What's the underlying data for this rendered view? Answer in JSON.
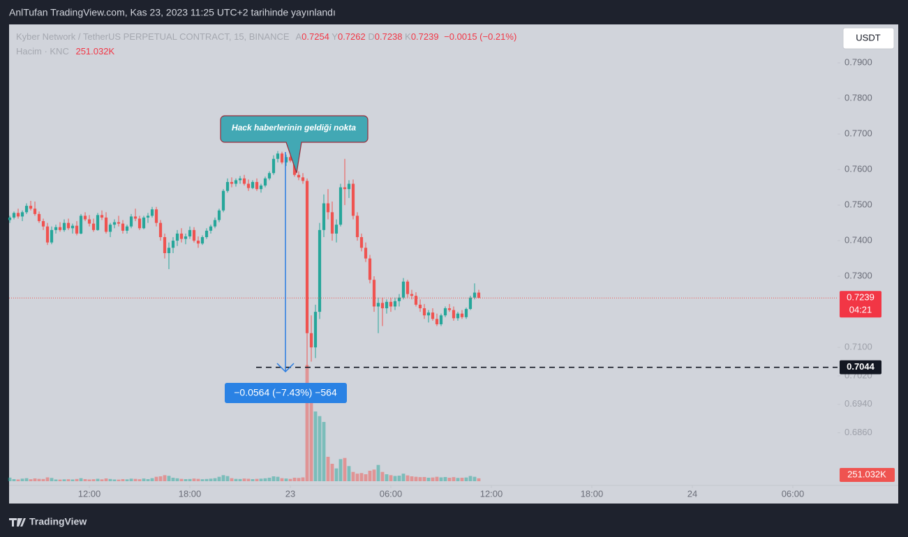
{
  "header": {
    "published": "AnlTufan TradingView.com, Kas 23, 2023 11:25 UTC+2 tarihinde yayınlandı",
    "currency": "USDT",
    "brand": "TradingView"
  },
  "chart_data": {
    "type": "candlestick",
    "symbol": "Kyber Network / TetherUS PERPETUAL CONTRACT, 15, BINANCE",
    "ohlc_letters": [
      "A",
      "Y",
      "D",
      "K"
    ],
    "change_label": "−0.0015 (−0.21%)",
    "volume_title": "Hacim · KNC",
    "volume_last_label": "251.032K",
    "countdown": "04:21",
    "annotation": "Hack haberlerinin geldiği nokta",
    "measure_label": "−0.0564 (−7.43%) −564",
    "level": 0.7044,
    "up_color": "#26a69a",
    "down_color": "#ef5350",
    "xlim": [
      -0.17,
      197.67
    ],
    "xticks": [
      {
        "value": 19,
        "label": "12:00"
      },
      {
        "value": 43,
        "label": "18:00"
      },
      {
        "value": 67,
        "label": "23"
      },
      {
        "value": 91,
        "label": "06:00"
      },
      {
        "value": 115,
        "label": "12:00"
      },
      {
        "value": 139,
        "label": "18:00"
      },
      {
        "value": 163,
        "label": "24"
      },
      {
        "value": 187,
        "label": "06:00"
      }
    ],
    "ylim": [
      0.6714,
      0.8008
    ],
    "yticks": [
      {
        "value": 0.79,
        "label": "0.7900"
      },
      {
        "value": 0.78,
        "label": "0.7800"
      },
      {
        "value": 0.77,
        "label": "0.7700"
      },
      {
        "value": 0.76,
        "label": "0.7600"
      },
      {
        "value": 0.75,
        "label": "0.7500"
      },
      {
        "value": 0.74,
        "label": "0.7400"
      },
      {
        "value": 0.73,
        "label": "0.7300"
      },
      {
        "value": 0.71,
        "label": "0.7100"
      },
      {
        "value": 0.702,
        "label": "0.7020"
      },
      {
        "value": 0.694,
        "label": "0.6940"
      },
      {
        "value": 0.686,
        "label": "0.6860"
      }
    ],
    "vlim": [
      0,
      10500000
    ],
    "candles": [
      [
        0.7458,
        0.747,
        0.745,
        0.7465
      ],
      [
        0.7465,
        0.7482,
        0.746,
        0.7478
      ],
      [
        0.7478,
        0.749,
        0.7462,
        0.7468
      ],
      [
        0.7468,
        0.7485,
        0.7455,
        0.748
      ],
      [
        0.748,
        0.7505,
        0.7475,
        0.7498
      ],
      [
        0.7498,
        0.7512,
        0.7485,
        0.749
      ],
      [
        0.749,
        0.751,
        0.747,
        0.7475
      ],
      [
        0.7475,
        0.7482,
        0.745,
        0.7455
      ],
      [
        0.7455,
        0.7462,
        0.743,
        0.744
      ],
      [
        0.744,
        0.745,
        0.7388,
        0.7395
      ],
      [
        0.7395,
        0.744,
        0.739,
        0.743
      ],
      [
        0.743,
        0.7445,
        0.742,
        0.7438
      ],
      [
        0.7438,
        0.7452,
        0.7425,
        0.743
      ],
      [
        0.743,
        0.746,
        0.7425,
        0.745
      ],
      [
        0.745,
        0.7462,
        0.743,
        0.7435
      ],
      [
        0.7435,
        0.7448,
        0.742,
        0.7442
      ],
      [
        0.7442,
        0.7455,
        0.7415,
        0.742
      ],
      [
        0.742,
        0.7475,
        0.7418,
        0.747
      ],
      [
        0.747,
        0.748,
        0.7455,
        0.746
      ],
      [
        0.746,
        0.7472,
        0.744,
        0.7448
      ],
      [
        0.7448,
        0.7462,
        0.7425,
        0.743
      ],
      [
        0.743,
        0.7478,
        0.7428,
        0.7472
      ],
      [
        0.7472,
        0.7485,
        0.7458,
        0.7465
      ],
      [
        0.7465,
        0.748,
        0.742,
        0.7425
      ],
      [
        0.7425,
        0.745,
        0.741,
        0.7445
      ],
      [
        0.7445,
        0.746,
        0.7435,
        0.7452
      ],
      [
        0.7452,
        0.747,
        0.744,
        0.7448
      ],
      [
        0.7448,
        0.7458,
        0.742,
        0.7428
      ],
      [
        0.7428,
        0.7445,
        0.742,
        0.744
      ],
      [
        0.744,
        0.7475,
        0.7435,
        0.7468
      ],
      [
        0.7468,
        0.749,
        0.7455,
        0.7462
      ],
      [
        0.7462,
        0.747,
        0.743,
        0.7435
      ],
      [
        0.7435,
        0.747,
        0.7432,
        0.7465
      ],
      [
        0.7465,
        0.7478,
        0.745,
        0.747
      ],
      [
        0.747,
        0.7495,
        0.7465,
        0.7488
      ],
      [
        0.7488,
        0.7495,
        0.744,
        0.745
      ],
      [
        0.745,
        0.7458,
        0.74,
        0.741
      ],
      [
        0.741,
        0.742,
        0.735,
        0.7365
      ],
      [
        0.7365,
        0.7395,
        0.732,
        0.738
      ],
      [
        0.738,
        0.741,
        0.7365,
        0.74
      ],
      [
        0.74,
        0.743,
        0.7385,
        0.742
      ],
      [
        0.742,
        0.7435,
        0.7395,
        0.7405
      ],
      [
        0.7405,
        0.742,
        0.739,
        0.7412
      ],
      [
        0.7412,
        0.744,
        0.7405,
        0.743
      ],
      [
        0.743,
        0.7438,
        0.7395,
        0.74
      ],
      [
        0.74,
        0.7412,
        0.738,
        0.7392
      ],
      [
        0.7392,
        0.7415,
        0.7388,
        0.741
      ],
      [
        0.741,
        0.7435,
        0.7405,
        0.7428
      ],
      [
        0.7428,
        0.7445,
        0.742,
        0.744
      ],
      [
        0.744,
        0.7465,
        0.7435,
        0.7458
      ],
      [
        0.7458,
        0.749,
        0.7452,
        0.7485
      ],
      [
        0.7485,
        0.7545,
        0.748,
        0.754
      ],
      [
        0.754,
        0.7575,
        0.7535,
        0.7565
      ],
      [
        0.7565,
        0.7578,
        0.755,
        0.756
      ],
      [
        0.756,
        0.7575,
        0.7552,
        0.757
      ],
      [
        0.757,
        0.7582,
        0.756,
        0.7575
      ],
      [
        0.7575,
        0.7585,
        0.7555,
        0.756
      ],
      [
        0.756,
        0.7572,
        0.754,
        0.7548
      ],
      [
        0.7548,
        0.757,
        0.7545,
        0.7565
      ],
      [
        0.7565,
        0.7575,
        0.754,
        0.7545
      ],
      [
        0.7545,
        0.756,
        0.7535,
        0.7555
      ],
      [
        0.7555,
        0.758,
        0.755,
        0.7575
      ],
      [
        0.7575,
        0.7595,
        0.757,
        0.759
      ],
      [
        0.759,
        0.764,
        0.7585,
        0.763
      ],
      [
        0.763,
        0.7652,
        0.762,
        0.7645
      ],
      [
        0.7645,
        0.765,
        0.7615,
        0.762
      ],
      [
        0.762,
        0.7642,
        0.761,
        0.7635
      ],
      [
        0.7635,
        0.7645,
        0.762,
        0.7625
      ],
      [
        0.7625,
        0.7632,
        0.758,
        0.7585
      ],
      [
        0.7585,
        0.7595,
        0.757,
        0.7578
      ],
      [
        0.7578,
        0.759,
        0.756,
        0.7568
      ],
      [
        0.7568,
        0.7575,
        0.7044,
        0.714
      ],
      [
        0.714,
        0.719,
        0.706,
        0.71
      ],
      [
        0.71,
        0.722,
        0.707,
        0.72
      ],
      [
        0.72,
        0.745,
        0.718,
        0.743
      ],
      [
        0.743,
        0.753,
        0.741,
        0.7505
      ],
      [
        0.7505,
        0.7545,
        0.746,
        0.748
      ],
      [
        0.748,
        0.751,
        0.74,
        0.742
      ],
      [
        0.742,
        0.746,
        0.7395,
        0.7445
      ],
      [
        0.7445,
        0.756,
        0.744,
        0.755
      ],
      [
        0.755,
        0.763,
        0.75,
        0.7545
      ],
      [
        0.7545,
        0.757,
        0.752,
        0.756
      ],
      [
        0.756,
        0.7572,
        0.746,
        0.747
      ],
      [
        0.747,
        0.748,
        0.74,
        0.741
      ],
      [
        0.741,
        0.742,
        0.737,
        0.738
      ],
      [
        0.738,
        0.7395,
        0.734,
        0.735
      ],
      [
        0.735,
        0.736,
        0.728,
        0.729
      ],
      [
        0.729,
        0.73,
        0.72,
        0.7215
      ],
      [
        0.7215,
        0.724,
        0.714,
        0.7225
      ],
      [
        0.7225,
        0.724,
        0.716,
        0.721
      ],
      [
        0.721,
        0.7235,
        0.7195,
        0.7228
      ],
      [
        0.7228,
        0.724,
        0.72,
        0.7215
      ],
      [
        0.7215,
        0.724,
        0.7205,
        0.723
      ],
      [
        0.723,
        0.725,
        0.7215,
        0.724
      ],
      [
        0.724,
        0.7295,
        0.7235,
        0.7285
      ],
      [
        0.7285,
        0.729,
        0.724,
        0.725
      ],
      [
        0.725,
        0.7262,
        0.7235,
        0.7245
      ],
      [
        0.7245,
        0.7255,
        0.7215,
        0.722
      ],
      [
        0.722,
        0.7235,
        0.72,
        0.721
      ],
      [
        0.721,
        0.7222,
        0.718,
        0.719
      ],
      [
        0.719,
        0.7205,
        0.717,
        0.7198
      ],
      [
        0.7198,
        0.721,
        0.7175,
        0.718
      ],
      [
        0.718,
        0.7195,
        0.716,
        0.7165
      ],
      [
        0.7165,
        0.7195,
        0.716,
        0.719
      ],
      [
        0.719,
        0.7215,
        0.7185,
        0.721
      ],
      [
        0.721,
        0.7222,
        0.72,
        0.7205
      ],
      [
        0.7205,
        0.7215,
        0.7175,
        0.7182
      ],
      [
        0.7182,
        0.72,
        0.7175,
        0.7195
      ],
      [
        0.7195,
        0.7205,
        0.718,
        0.7185
      ],
      [
        0.7185,
        0.7212,
        0.718,
        0.7208
      ],
      [
        0.7208,
        0.7245,
        0.7205,
        0.724
      ],
      [
        0.724,
        0.728,
        0.7235,
        0.7254
      ],
      [
        0.7254,
        0.7262,
        0.7238,
        0.7239
      ]
    ],
    "volumes": [
      310000,
      180000,
      150000,
      220000,
      260000,
      170000,
      240000,
      200000,
      190000,
      330000,
      280000,
      150000,
      140000,
      160000,
      170000,
      150000,
      190000,
      260000,
      180000,
      150000,
      170000,
      210000,
      160000,
      240000,
      190000,
      150000,
      140000,
      180000,
      160000,
      220000,
      200000,
      170000,
      230000,
      180000,
      260000,
      380000,
      420000,
      520000,
      460000,
      300000,
      250000,
      200000,
      180000,
      190000,
      230000,
      200000,
      170000,
      190000,
      220000,
      260000,
      380000,
      520000,
      440000,
      260000,
      200000,
      190000,
      230000,
      210000,
      180000,
      200000,
      220000,
      250000,
      300000,
      420000,
      380000,
      260000,
      230000,
      200000,
      300000,
      280000,
      330000,
      10000000,
      7200000,
      6000000,
      5600000,
      5100000,
      2100000,
      1500000,
      1100000,
      1900000,
      2000000,
      1300000,
      800000,
      650000,
      700000,
      600000,
      900000,
      1000000,
      1400000,
      800000,
      600000,
      520000,
      450000,
      480000,
      650000,
      500000,
      420000,
      380000,
      350000,
      360000,
      300000,
      320000,
      380000,
      330000,
      360000,
      300000,
      350000,
      280000,
      300000,
      320000,
      450000,
      380000,
      251032
    ]
  }
}
